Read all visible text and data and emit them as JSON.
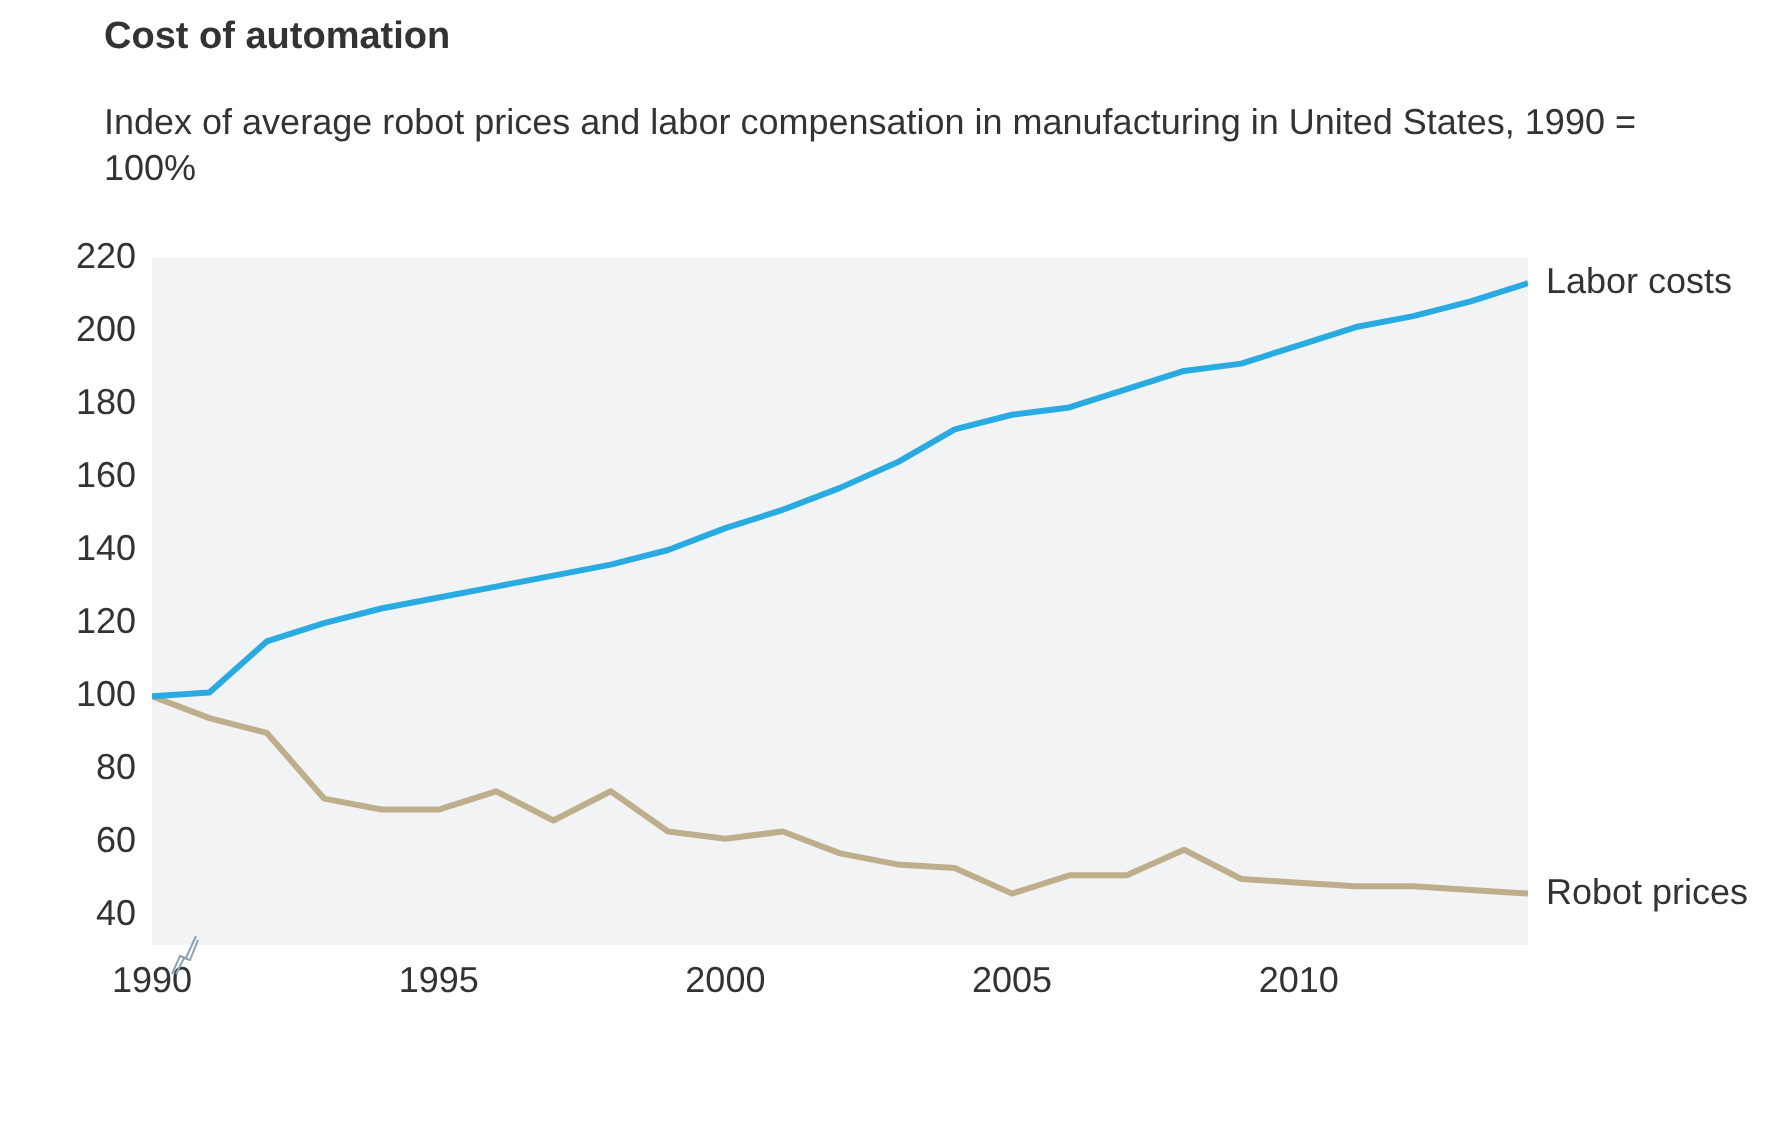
{
  "chart_data": {
    "type": "line",
    "title": "Cost of automation",
    "subtitle": "Index of average robot prices and labor compensation in manufacturing in United States, 1990 = 100%",
    "x": [
      1990,
      1991,
      1992,
      1993,
      1994,
      1995,
      1996,
      1997,
      1998,
      1999,
      2000,
      2001,
      2002,
      2003,
      2004,
      2005,
      2006,
      2007,
      2008,
      2009,
      2010,
      2011,
      2012,
      2013,
      2014
    ],
    "series": [
      {
        "name": "Labor costs",
        "color": "#29abe2",
        "values": [
          100,
          101,
          115,
          120,
          124,
          127,
          130,
          133,
          136,
          140,
          146,
          151,
          157,
          164,
          173,
          177,
          179,
          184,
          189,
          191,
          196,
          201,
          204,
          208,
          213
        ]
      },
      {
        "name": "Robot prices",
        "color": "#bfae8c",
        "values": [
          100,
          94,
          90,
          72,
          69,
          69,
          74,
          66,
          74,
          63,
          61,
          63,
          57,
          54,
          53,
          46,
          51,
          51,
          58,
          50,
          49,
          48,
          48,
          47,
          46
        ]
      }
    ],
    "xlim": [
      1990,
      2014
    ],
    "xticks": [
      1990,
      1995,
      2000,
      2005,
      2010
    ],
    "ylim": [
      32,
      220
    ],
    "yticks": [
      40,
      60,
      80,
      100,
      120,
      140,
      160,
      180,
      200,
      220
    ],
    "grid": false,
    "legend": false,
    "marker": "none",
    "line_style": "solid"
  }
}
